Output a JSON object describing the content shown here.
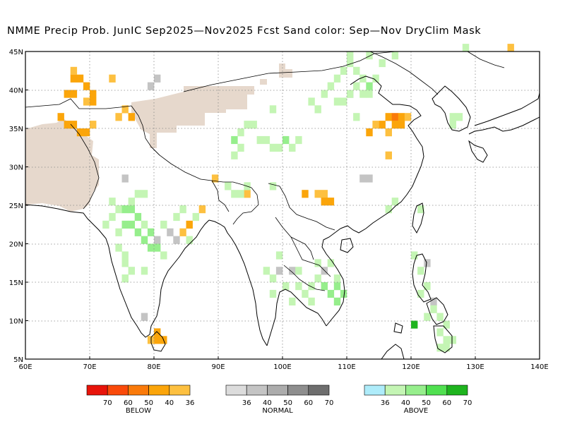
{
  "title": "NMME Precip Prob. JunIC  Sep2025—Nov2025 Fcst  Sand color: Sep—Nov DryClim Mask",
  "map": {
    "lon_range": [
      60,
      140
    ],
    "lat_range": [
      5,
      45
    ],
    "lon_ticks": [
      "60E",
      "70E",
      "80E",
      "90E",
      "100E",
      "110E",
      "120E",
      "130E",
      "140E"
    ],
    "lat_ticks": [
      "5N",
      "10N",
      "15N",
      "20N",
      "25N",
      "30N",
      "35N",
      "40N",
      "45N"
    ]
  },
  "legends": [
    {
      "caption": "BELOW",
      "colors": [
        "#e8140a",
        "#fa4a0a",
        "#fa7a0a",
        "#fba50a",
        "#fdc040"
      ],
      "labels": [
        "70",
        "60",
        "50",
        "40",
        "36"
      ]
    },
    {
      "caption": "NORMAL",
      "colors": [
        "#dcdcdc",
        "#c4c4c4",
        "#acacac",
        "#8e8e8e",
        "#6e6e6e"
      ],
      "labels": [
        "36",
        "40",
        "50",
        "60",
        "70"
      ]
    },
    {
      "caption": "ABOVE",
      "colors": [
        "#aeecfa",
        "#c4f5b4",
        "#96ee8c",
        "#50e050",
        "#1eb41e"
      ],
      "labels": [
        "36",
        "40",
        "50",
        "60",
        "70"
      ]
    }
  ],
  "colors": {
    "dry_mask": "#e6d8cc",
    "below_40": "#fba50a",
    "below_36": "#fdc040",
    "below_50": "#fa7a0a",
    "normal_40": "#c4c4c4",
    "above_40": "#c4f5b4",
    "above_50": "#96ee8c",
    "above_70": "#1eb41e"
  }
}
